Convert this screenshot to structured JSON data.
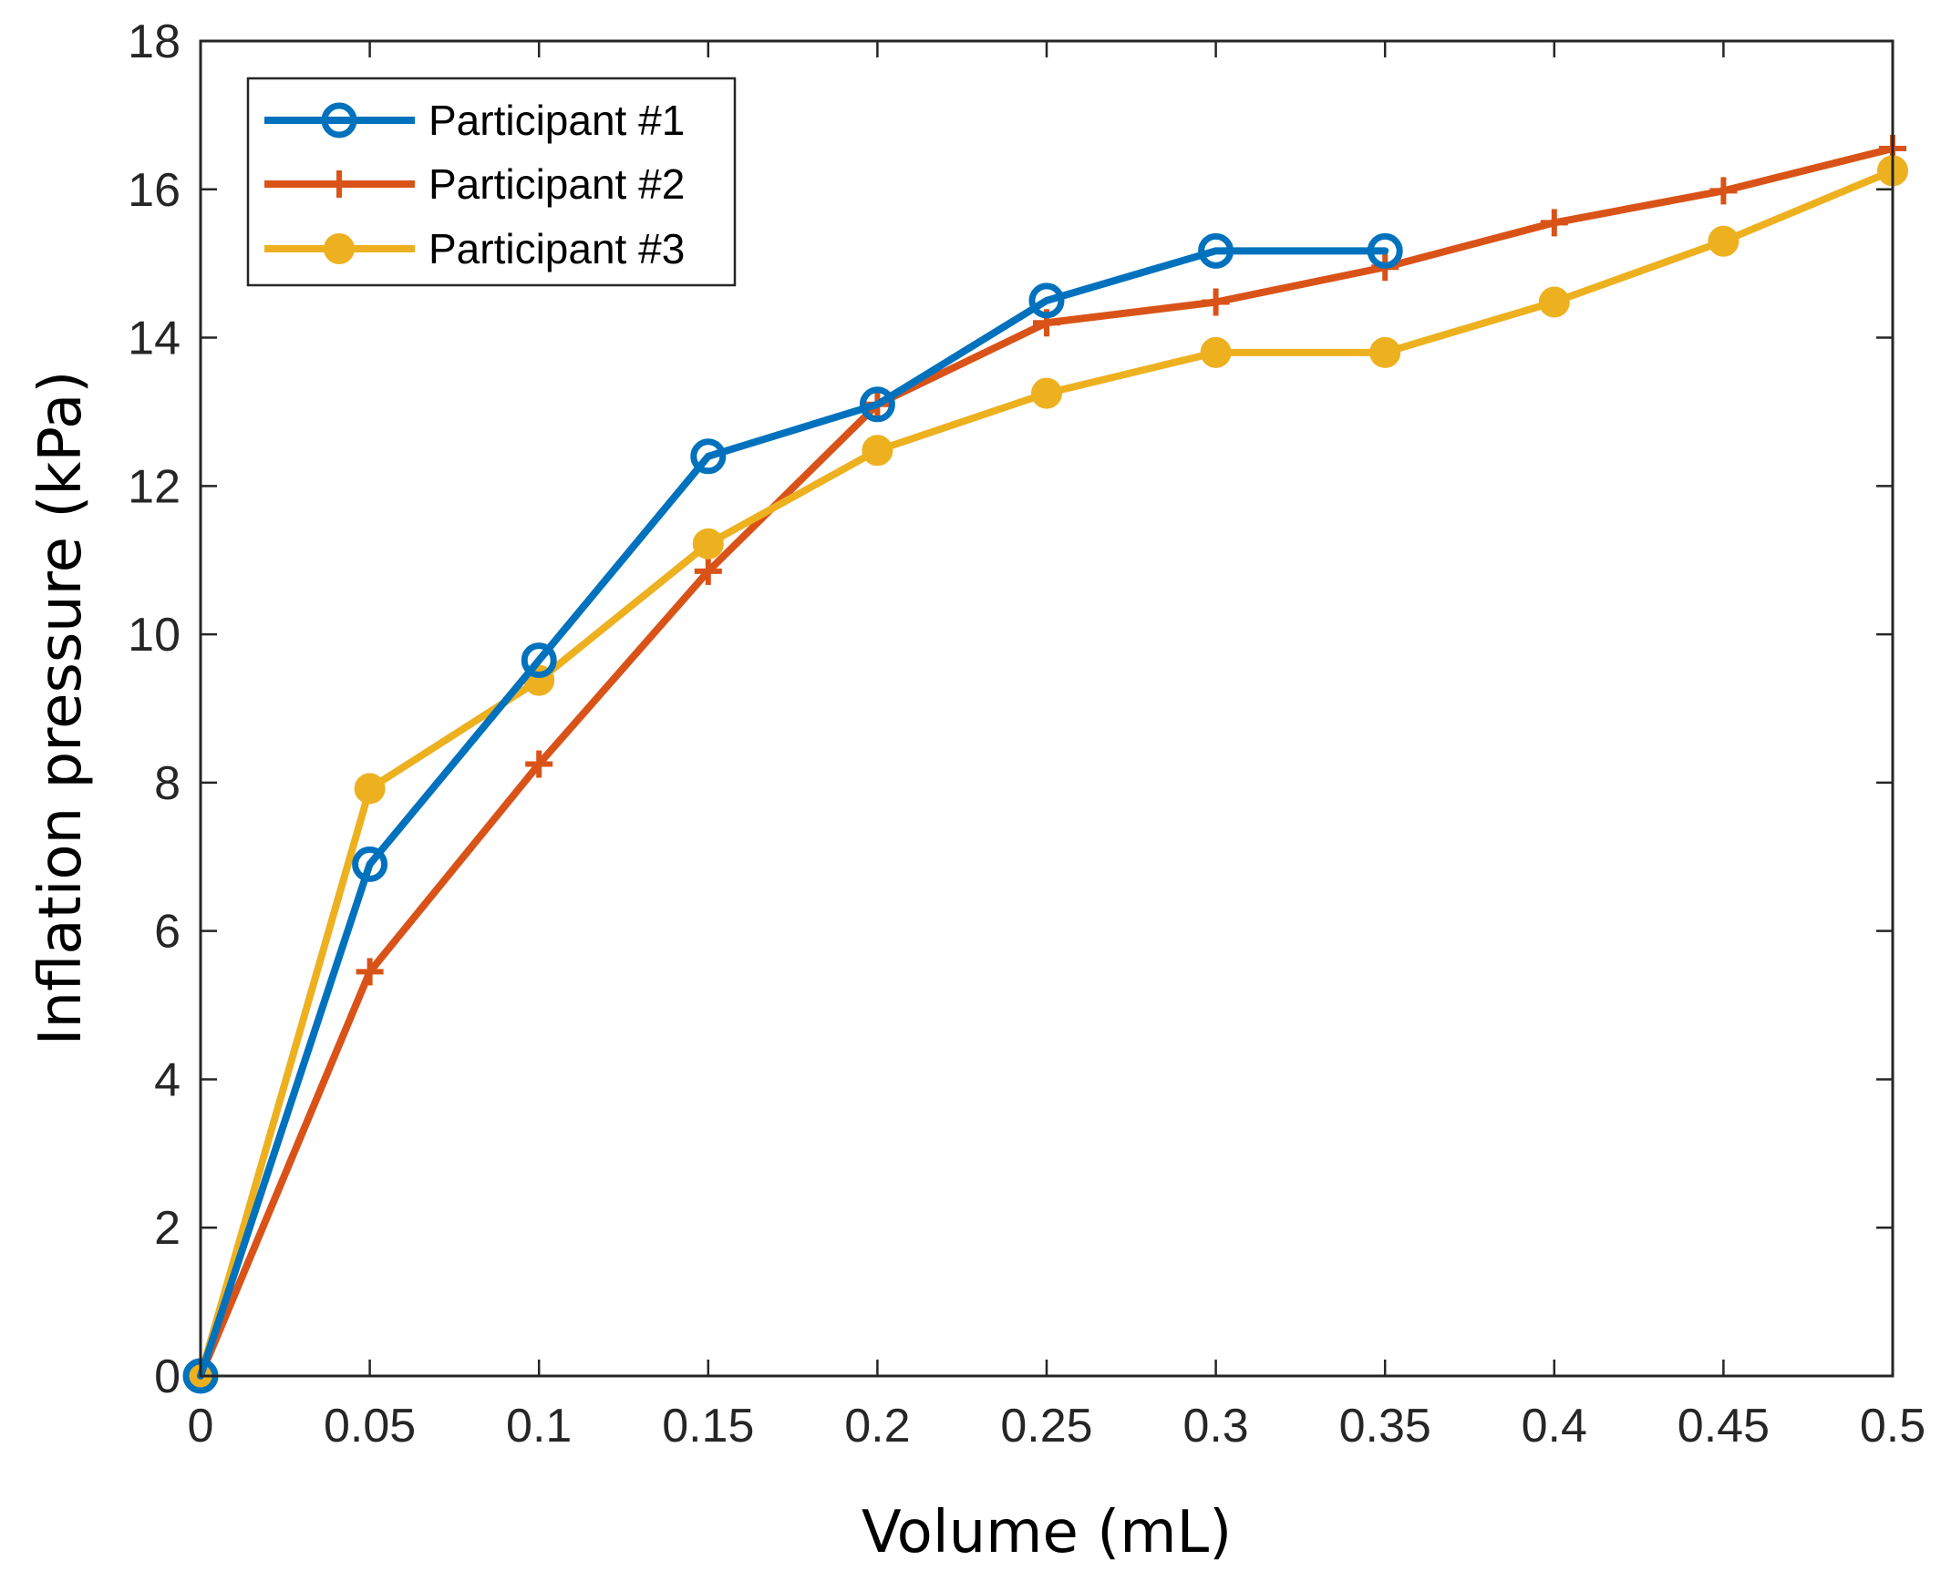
{
  "chart_data": {
    "type": "line",
    "title": "",
    "xlabel": "Volume (mL)",
    "ylabel": "Inflation pressure (kPa)",
    "xlim": [
      0,
      0.5
    ],
    "ylim": [
      0,
      18
    ],
    "grid": false,
    "legend_position": "top-left",
    "x_ticks": [
      0,
      0.05,
      0.1,
      0.15,
      0.2,
      0.25,
      0.3,
      0.35,
      0.4,
      0.45,
      0.5
    ],
    "x_tick_labels": [
      "0",
      "0.05",
      "0.1",
      "0.15",
      "0.2",
      "0.25",
      "0.3",
      "0.35",
      "0.4",
      "0.45",
      "0.5"
    ],
    "y_ticks": [
      0,
      2,
      4,
      6,
      8,
      10,
      12,
      14,
      16,
      18
    ],
    "y_tick_labels": [
      "0",
      "2",
      "4",
      "6",
      "8",
      "10",
      "12",
      "14",
      "16",
      "18"
    ],
    "series": [
      {
        "name": "Participant #1",
        "color": "#0072BD",
        "marker": "open-circle",
        "x": [
          0,
          0.05,
          0.1,
          0.15,
          0.2,
          0.25,
          0.3,
          0.35
        ],
        "values": [
          0,
          6.9,
          9.65,
          12.4,
          13.1,
          14.5,
          15.17,
          15.17
        ]
      },
      {
        "name": "Participant #2",
        "color": "#D95319",
        "marker": "plus",
        "x": [
          0,
          0.05,
          0.1,
          0.15,
          0.2,
          0.25,
          0.3,
          0.35,
          0.4,
          0.45,
          0.5
        ],
        "values": [
          0,
          5.45,
          8.25,
          10.85,
          13.1,
          14.2,
          14.48,
          14.95,
          15.55,
          15.98,
          16.55
        ]
      },
      {
        "name": "Participant #3",
        "color": "#EDB120",
        "marker": "filled-circle",
        "x": [
          0,
          0.05,
          0.1,
          0.15,
          0.2,
          0.25,
          0.3,
          0.35,
          0.4,
          0.45,
          0.5
        ],
        "values": [
          0,
          7.92,
          9.38,
          11.22,
          12.48,
          13.25,
          13.8,
          13.8,
          14.48,
          15.3,
          16.25
        ]
      }
    ]
  }
}
